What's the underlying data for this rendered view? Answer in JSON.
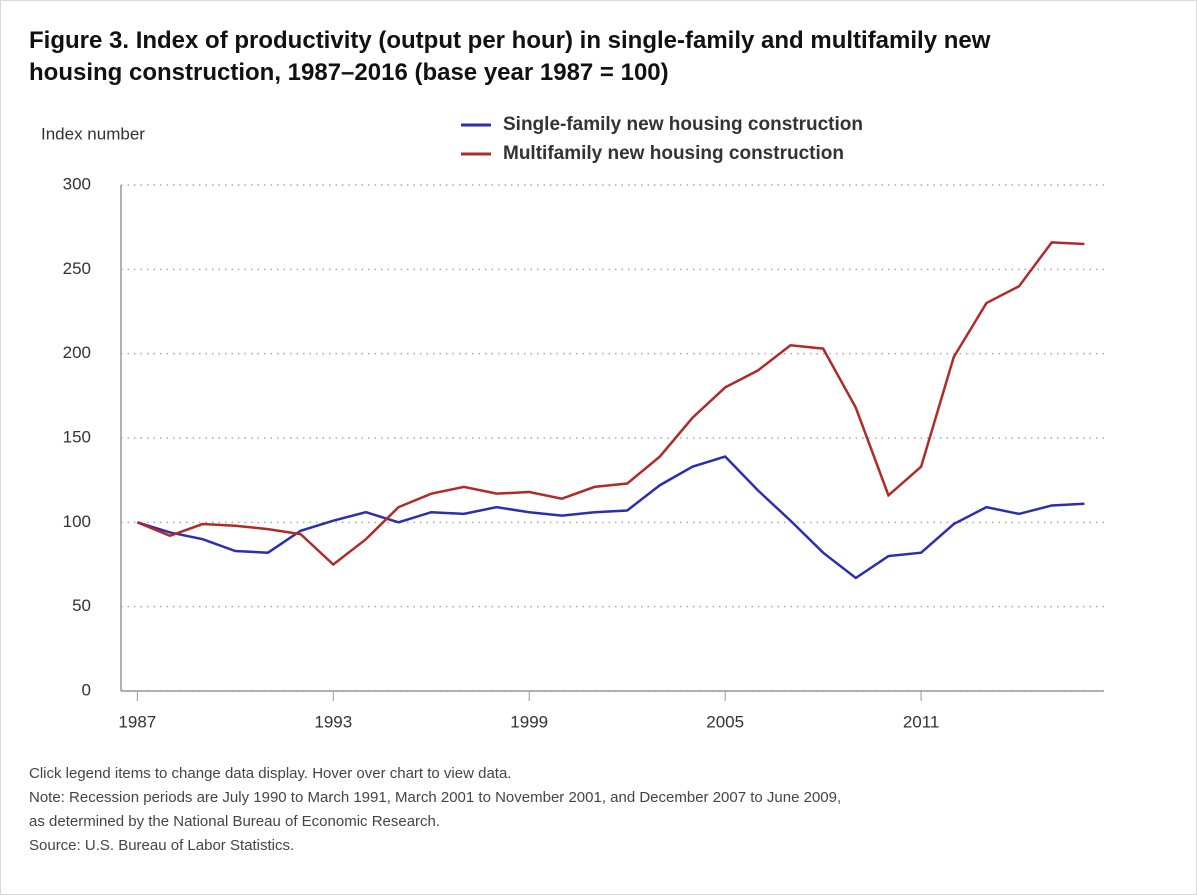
{
  "chart_data": {
    "type": "line",
    "title": "Figure 3. Index of productivity (output per hour) in single-family and multifamily new housing construction, 1987–2016 (base year 1987 = 100)",
    "y_label": "Index number",
    "x": [
      1987,
      1988,
      1989,
      1990,
      1991,
      1992,
      1993,
      1994,
      1995,
      1996,
      1997,
      1998,
      1999,
      2000,
      2001,
      2002,
      2003,
      2004,
      2005,
      2006,
      2007,
      2008,
      2009,
      2010,
      2011,
      2012,
      2013,
      2014,
      2015,
      2016
    ],
    "series": [
      {
        "name": "Single-family new housing construction",
        "color": "#2b2fae",
        "values": [
          100,
          94,
          90,
          83,
          82,
          95,
          101,
          106,
          100,
          106,
          105,
          109,
          106,
          104,
          106,
          107,
          122,
          133,
          139,
          119,
          101,
          82,
          67,
          80,
          82,
          99,
          109,
          105,
          110,
          111
        ]
      },
      {
        "name": "Multifamily new housing construction",
        "color": "#b02a2a",
        "values": [
          100,
          92,
          99,
          98,
          96,
          93,
          75,
          90,
          109,
          117,
          121,
          117,
          118,
          114,
          121,
          123,
          139,
          162,
          180,
          190,
          205,
          203,
          168,
          116,
          133,
          198,
          230,
          240,
          266,
          265
        ]
      }
    ],
    "xlim": [
      1986.5,
      2016.6
    ],
    "xticks": [
      1987,
      1993,
      1999,
      2005,
      2011
    ],
    "ylim": [
      0,
      300
    ],
    "yticks": [
      0,
      50,
      100,
      150,
      200,
      250,
      300
    ],
    "grid": true,
    "legend": "top",
    "notes": [
      "Click legend items to change data display. Hover over chart to view data.",
      "Note: Recession periods are July 1990 to March 1991, March 2001 to November 2001, and December 2007 to June 2009,",
      "as determined by the National Bureau of Economic Research.",
      "Source: U.S. Bureau of Labor Statistics."
    ]
  }
}
